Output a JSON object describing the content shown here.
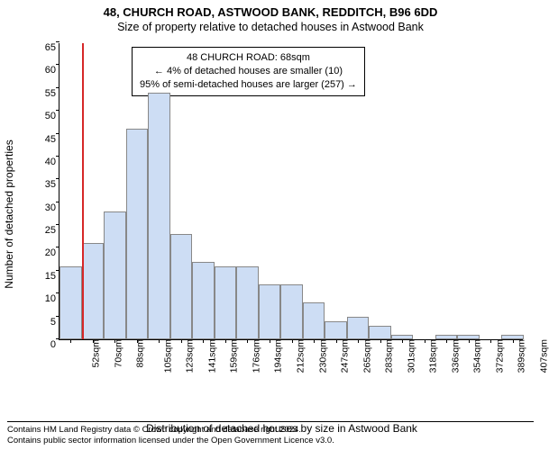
{
  "title": {
    "main": "48, CHURCH ROAD, ASTWOOD BANK, REDDITCH, B96 6DD",
    "sub": "Size of property relative to detached houses in Astwood Bank"
  },
  "axes": {
    "ylabel": "Number of detached properties",
    "xlabel": "Distribution of detached houses by size in Astwood Bank",
    "ylim": [
      0,
      65
    ],
    "ytick_step": 5,
    "xticks": [
      "52sqm",
      "70sqm",
      "88sqm",
      "105sqm",
      "123sqm",
      "141sqm",
      "159sqm",
      "176sqm",
      "194sqm",
      "212sqm",
      "230sqm",
      "247sqm",
      "265sqm",
      "283sqm",
      "301sqm",
      "318sqm",
      "336sqm",
      "354sqm",
      "372sqm",
      "389sqm",
      "407sqm"
    ]
  },
  "chart": {
    "type": "histogram",
    "bar_color": "#cdddf4",
    "bar_border_color": "#888888",
    "background_color": "#ffffff",
    "values": [
      16,
      21,
      28,
      46,
      54,
      23,
      17,
      16,
      16,
      12,
      12,
      8,
      4,
      5,
      3,
      1,
      0,
      1,
      1,
      0,
      1
    ],
    "refline": {
      "x_index": 1.0,
      "color": "#d62728"
    }
  },
  "annotation": {
    "line1": "48 CHURCH ROAD: 68sqm",
    "line2": "← 4% of detached houses are smaller (10)",
    "line3": "95% of semi-detached houses are larger (257) →"
  },
  "footer": {
    "line1": "Contains HM Land Registry data © Crown copyright and database right 2024.",
    "line2": "Contains public sector information licensed under the Open Government Licence v3.0."
  },
  "fonts": {
    "title_size": 13,
    "label_size": 12,
    "tick_size": 11
  }
}
